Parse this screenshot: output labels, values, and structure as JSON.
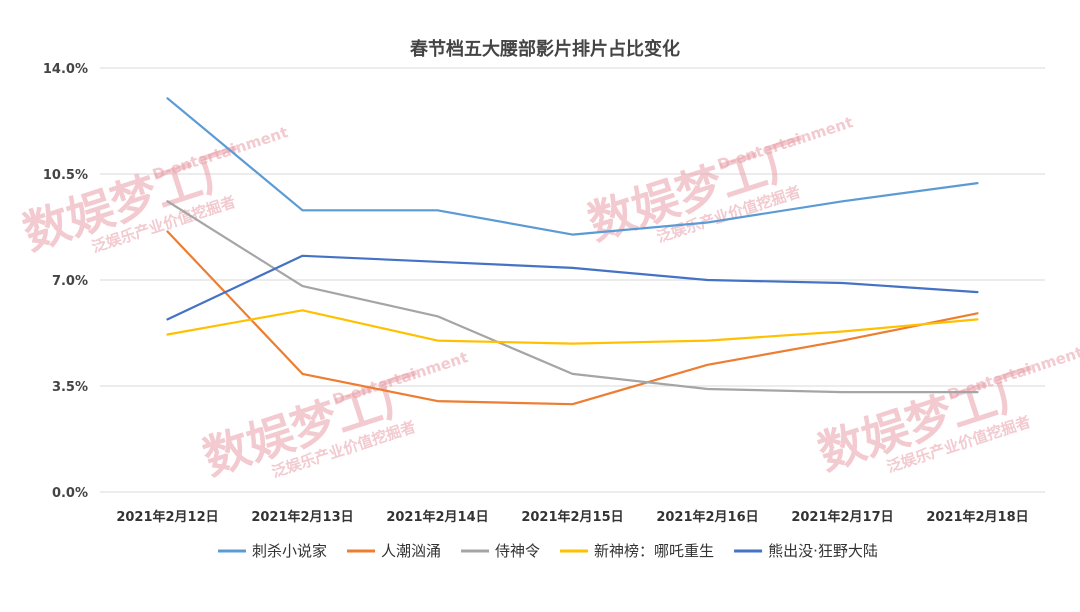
{
  "chart_data": {
    "type": "line",
    "title": "春节档五大腰部影片排片占比变化",
    "categories": [
      "2021年2月12日",
      "2021年2月13日",
      "2021年2月14日",
      "2021年2月15日",
      "2021年2月16日",
      "2021年2月17日",
      "2021年2月18日"
    ],
    "yticks": [
      "0.0%",
      "3.5%",
      "7.0%",
      "10.5%",
      "14.0%"
    ],
    "ylim": [
      0,
      14
    ],
    "grid": true,
    "legend_position": "bottom",
    "series": [
      {
        "name": "刺杀小说家",
        "color": "#5b9bd5",
        "values": [
          13.0,
          9.3,
          9.3,
          8.5,
          8.9,
          9.6,
          10.2
        ]
      },
      {
        "name": "人潮汹涌",
        "color": "#ed7d31",
        "values": [
          8.6,
          3.9,
          3.0,
          2.9,
          4.2,
          5.0,
          5.9
        ]
      },
      {
        "name": "侍神令",
        "color": "#a5a5a5",
        "values": [
          9.6,
          6.8,
          5.8,
          3.9,
          3.4,
          3.3,
          3.3
        ]
      },
      {
        "name": "新神榜：哪吒重生",
        "color": "#ffc000",
        "values": [
          5.2,
          6.0,
          5.0,
          4.9,
          5.0,
          5.3,
          5.7
        ]
      },
      {
        "name": "熊出没·狂野大陆",
        "color": "#4472c4",
        "values": [
          5.7,
          7.8,
          7.6,
          7.4,
          7.0,
          6.9,
          6.6
        ]
      }
    ]
  },
  "watermark": {
    "main": "数娱梦工厂",
    "sub": "D-entertainment",
    "slogan": "泛娱乐产业价值挖掘者"
  }
}
